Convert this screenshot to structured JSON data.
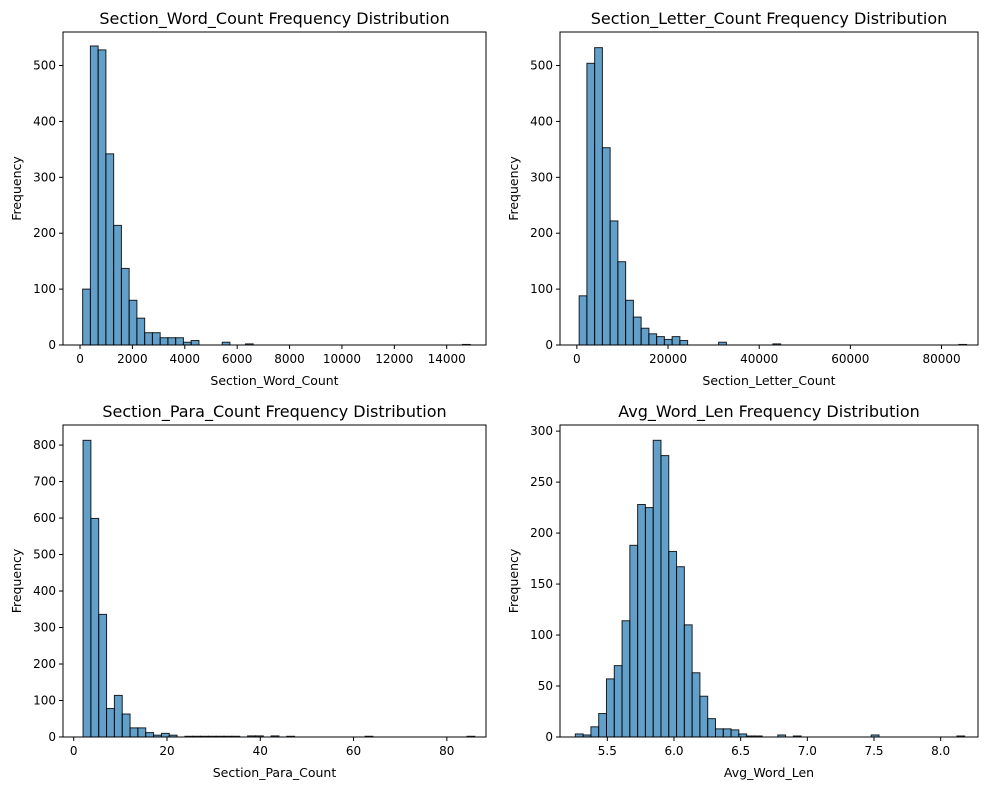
{
  "colors": {
    "bar_fill": "#1f77b4",
    "bar_edge": "#000000",
    "bar_alpha": 0.7,
    "axis": "#000000",
    "background": "#ffffff"
  },
  "chart_data": [
    {
      "type": "bar",
      "title": "Section_Word_Count Frequency Distribution",
      "xlabel": "Section_Word_Count",
      "ylabel": "Frequency",
      "xlim": [
        -650,
        15500
      ],
      "ylim": [
        0,
        560
      ],
      "xticks": [
        0,
        2000,
        4000,
        6000,
        8000,
        10000,
        12000,
        14000
      ],
      "xtick_labels": [
        "0",
        "2000",
        "4000",
        "6000",
        "8000",
        "10000",
        "12000",
        "14000"
      ],
      "yticks": [
        0,
        100,
        200,
        300,
        400,
        500
      ],
      "ytick_labels": [
        "0",
        "100",
        "200",
        "300",
        "400",
        "500"
      ],
      "bin_start": 100,
      "bin_width": 296,
      "values": [
        100,
        535,
        528,
        342,
        214,
        137,
        80,
        48,
        22,
        22,
        13,
        13,
        13,
        5,
        8,
        0,
        0,
        0,
        5,
        0,
        0,
        2,
        0,
        0,
        0,
        0,
        0,
        0,
        0,
        0,
        0,
        0,
        0,
        0,
        0,
        0,
        0,
        0,
        0,
        0,
        0,
        0,
        0,
        0,
        0,
        0,
        0,
        0,
        0,
        1
      ]
    },
    {
      "type": "bar",
      "title": "Section_Letter_Count Frequency Distribution",
      "xlabel": "Section_Letter_Count",
      "ylabel": "Frequency",
      "xlim": [
        -3700,
        88000
      ],
      "ylim": [
        0,
        560
      ],
      "xticks": [
        0,
        20000,
        40000,
        60000,
        80000
      ],
      "xtick_labels": [
        "0",
        "20000",
        "40000",
        "60000",
        "80000"
      ],
      "yticks": [
        0,
        100,
        200,
        300,
        400,
        500
      ],
      "ytick_labels": [
        "0",
        "100",
        "200",
        "300",
        "400",
        "500"
      ],
      "bin_start": 500,
      "bin_width": 1700,
      "values": [
        88,
        504,
        532,
        353,
        222,
        149,
        80,
        50,
        30,
        20,
        15,
        10,
        15,
        8,
        0,
        0,
        0,
        0,
        5,
        0,
        0,
        0,
        0,
        0,
        0,
        2,
        0,
        0,
        0,
        0,
        0,
        0,
        0,
        0,
        0,
        0,
        0,
        0,
        0,
        0,
        0,
        0,
        0,
        0,
        0,
        0,
        0,
        0,
        0,
        1
      ]
    },
    {
      "type": "bar",
      "title": "Section_Para_Count Frequency Distribution",
      "xlabel": "Section_Para_Count",
      "ylabel": "Frequency",
      "xlim": [
        -2.3,
        88.4
      ],
      "ylim": [
        0,
        855
      ],
      "xticks": [
        0,
        20,
        40,
        60,
        80
      ],
      "xtick_labels": [
        "0",
        "20",
        "40",
        "60",
        "80"
      ],
      "yticks": [
        0,
        100,
        200,
        300,
        400,
        500,
        600,
        700,
        800
      ],
      "ytick_labels": [
        "0",
        "100",
        "200",
        "300",
        "400",
        "500",
        "600",
        "700",
        "800"
      ],
      "bin_start": 2,
      "bin_width": 1.68,
      "values": [
        813,
        599,
        336,
        78,
        114,
        63,
        25,
        25,
        12,
        5,
        10,
        5,
        0,
        2,
        2,
        2,
        2,
        2,
        2,
        2,
        0,
        3,
        3,
        0,
        3,
        0,
        2,
        0,
        0,
        0,
        0,
        0,
        0,
        0,
        0,
        0,
        2,
        0,
        0,
        0,
        0,
        0,
        0,
        0,
        0,
        0,
        0,
        0,
        0,
        2
      ]
    },
    {
      "type": "bar",
      "title": "Avg_Word_Len Frequency Distribution",
      "xlabel": "Avg_Word_Len",
      "ylabel": "Frequency",
      "xlim": [
        5.145,
        8.28
      ],
      "ylim": [
        0,
        306
      ],
      "xticks": [
        5.5,
        6.0,
        6.5,
        7.0,
        7.5,
        8.0
      ],
      "xtick_labels": [
        "5.5",
        "6.0",
        "6.5",
        "7.0",
        "7.5",
        "8.0"
      ],
      "yticks": [
        0,
        50,
        100,
        150,
        200,
        250,
        300
      ],
      "ytick_labels": [
        "0",
        "50",
        "100",
        "150",
        "200",
        "250",
        "300"
      ],
      "bin_start": 5.26,
      "bin_width": 0.0584,
      "values": [
        3,
        2,
        10,
        23,
        57,
        70,
        114,
        188,
        228,
        225,
        291,
        276,
        182,
        167,
        110,
        63,
        40,
        18,
        8,
        8,
        7,
        3,
        1,
        1,
        0,
        0,
        2,
        0,
        1,
        0,
        0,
        0,
        0,
        0,
        0,
        0,
        0,
        0,
        2,
        0,
        0,
        0,
        0,
        0,
        0,
        0,
        0,
        0,
        0,
        1
      ]
    }
  ]
}
